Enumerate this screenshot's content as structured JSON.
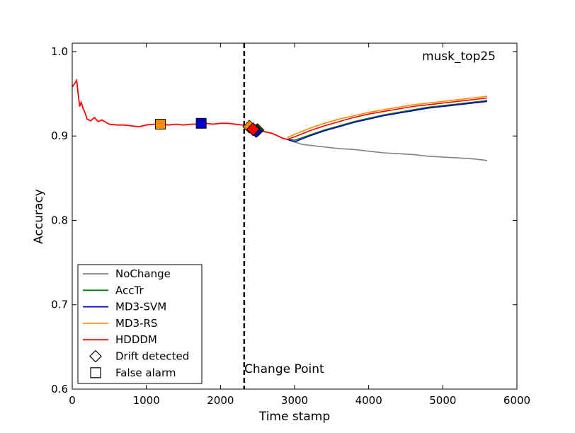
{
  "chart_data": {
    "type": "line",
    "title": "musk_top25",
    "xlabel": "Time stamp",
    "ylabel": "Accuracy",
    "xlim": [
      0,
      6000
    ],
    "ylim": [
      0.6,
      1.01
    ],
    "xticks": [
      0,
      1000,
      2000,
      3000,
      4000,
      5000,
      6000
    ],
    "xtick_labels": [
      "0",
      "1000",
      "2000",
      "3000",
      "4000",
      "5000",
      "6000"
    ],
    "yticks": [
      0.6,
      0.7,
      0.8,
      0.9,
      1.0
    ],
    "ytick_labels": [
      "0.6",
      "0.7",
      "0.8",
      "0.9",
      "1.0"
    ],
    "change_point": {
      "x": 2320,
      "label": "Change Point"
    },
    "shared_history": {
      "x": [
        0,
        30,
        60,
        80,
        100,
        120,
        150,
        180,
        200,
        250,
        300,
        350,
        400,
        500,
        600,
        700,
        800,
        900,
        1000,
        1100,
        1200,
        1300,
        1400,
        1500,
        1600,
        1700,
        1800,
        1900,
        2000,
        2100,
        2200,
        2300,
        2350,
        2400,
        2450,
        2500,
        2550,
        2600,
        2650,
        2700,
        2750,
        2800,
        2850,
        2900
      ],
      "y": [
        0.958,
        0.962,
        0.966,
        0.95,
        0.935,
        0.94,
        0.932,
        0.926,
        0.92,
        0.918,
        0.922,
        0.917,
        0.919,
        0.914,
        0.913,
        0.913,
        0.912,
        0.911,
        0.913,
        0.914,
        0.914,
        0.913,
        0.914,
        0.913,
        0.914,
        0.914,
        0.915,
        0.914,
        0.915,
        0.915,
        0.914,
        0.913,
        0.911,
        0.91,
        0.907,
        0.906,
        0.906,
        0.905,
        0.904,
        0.903,
        0.901,
        0.899,
        0.897,
        0.896
      ]
    },
    "series": [
      {
        "name": "NoChange",
        "color": "#808080",
        "x": [
          2900,
          3000,
          3100,
          3200,
          3400,
          3600,
          3800,
          4000,
          4200,
          4400,
          4600,
          4800,
          5000,
          5200,
          5400,
          5600
        ],
        "y": [
          0.896,
          0.893,
          0.89,
          0.889,
          0.887,
          0.885,
          0.884,
          0.882,
          0.88,
          0.879,
          0.878,
          0.876,
          0.875,
          0.874,
          0.873,
          0.871
        ]
      },
      {
        "name": "AccTr",
        "color": "#008000",
        "x": [
          2900,
          3000,
          3200,
          3400,
          3600,
          3800,
          4000,
          4200,
          4400,
          4600,
          4800,
          5000,
          5200,
          5400,
          5600
        ],
        "y": [
          0.896,
          0.895,
          0.901,
          0.907,
          0.912,
          0.917,
          0.921,
          0.925,
          0.928,
          0.931,
          0.934,
          0.936,
          0.938,
          0.94,
          0.942
        ]
      },
      {
        "name": "MD3-SVM",
        "color": "#0000cc",
        "x": [
          2900,
          3000,
          3200,
          3400,
          3600,
          3800,
          4000,
          4200,
          4400,
          4600,
          4800,
          5000,
          5200,
          5400,
          5600
        ],
        "y": [
          0.896,
          0.893,
          0.9,
          0.906,
          0.911,
          0.916,
          0.92,
          0.924,
          0.927,
          0.93,
          0.933,
          0.935,
          0.937,
          0.939,
          0.941
        ]
      },
      {
        "name": "MD3-RS",
        "color": "#ff8c00",
        "x": [
          2900,
          3000,
          3200,
          3400,
          3600,
          3800,
          4000,
          4200,
          4400,
          4600,
          4800,
          5000,
          5200,
          5400,
          5600
        ],
        "y": [
          0.898,
          0.902,
          0.909,
          0.915,
          0.92,
          0.924,
          0.928,
          0.931,
          0.934,
          0.937,
          0.939,
          0.941,
          0.943,
          0.945,
          0.947
        ]
      },
      {
        "name": "HDDDM",
        "color": "#ff0000",
        "x": [
          2900,
          3000,
          3200,
          3400,
          3600,
          3800,
          4000,
          4200,
          4400,
          4600,
          4800,
          5000,
          5200,
          5400,
          5600
        ],
        "y": [
          0.896,
          0.899,
          0.906,
          0.912,
          0.917,
          0.922,
          0.926,
          0.929,
          0.932,
          0.935,
          0.937,
          0.939,
          0.941,
          0.943,
          0.945
        ]
      }
    ],
    "markers": [
      {
        "series": "MD3-RS",
        "kind": "False alarm",
        "x": 1190,
        "y": 0.914,
        "color": "#ff8c00"
      },
      {
        "series": "MD3-SVM",
        "kind": "False alarm",
        "x": 1740,
        "y": 0.915,
        "color": "#0000cc"
      },
      {
        "series": "MD3-RS",
        "kind": "Drift detected",
        "x": 2390,
        "y": 0.911,
        "color": "#ff8c00"
      },
      {
        "series": "AccTr",
        "kind": "Drift detected",
        "x": 2500,
        "y": 0.907,
        "color": "#008000"
      },
      {
        "series": "MD3-SVM",
        "kind": "Drift detected",
        "x": 2480,
        "y": 0.906,
        "color": "#0000cc"
      },
      {
        "series": "HDDDM",
        "kind": "Drift detected",
        "x": 2440,
        "y": 0.908,
        "color": "#ff0000"
      }
    ],
    "legend": {
      "position": "lower-left",
      "entries": [
        {
          "label": "NoChange",
          "kind": "line",
          "color": "#808080"
        },
        {
          "label": "AccTr",
          "kind": "line",
          "color": "#008000"
        },
        {
          "label": "MD3-SVM",
          "kind": "line",
          "color": "#0000cc"
        },
        {
          "label": "MD3-RS",
          "kind": "line",
          "color": "#ff8c00"
        },
        {
          "label": "HDDDM",
          "kind": "line",
          "color": "#ff0000"
        },
        {
          "label": "Drift detected",
          "kind": "diamond",
          "color": "#000000"
        },
        {
          "label": "False alarm",
          "kind": "square",
          "color": "#000000"
        }
      ]
    }
  }
}
